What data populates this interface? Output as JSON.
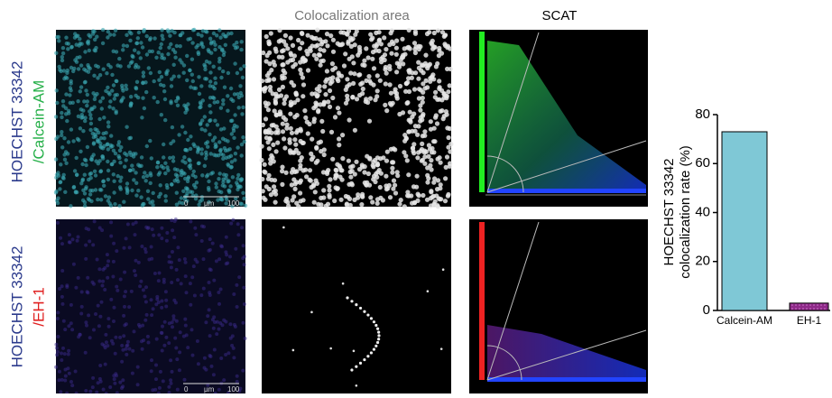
{
  "panels": {
    "col_headers": [
      "Colocalization area",
      "SCAT"
    ],
    "rows": [
      {
        "label": "HOECHST 33342",
        "marker": "/Calcein-AM"
      },
      {
        "label": "HOECHST 33342",
        "marker": "/EH-1"
      }
    ],
    "scale_bar": {
      "start": "0",
      "unit": "µm",
      "end": "100"
    }
  },
  "chart_data": {
    "type": "bar",
    "ylabel": [
      "HOECHST 33342",
      "colocalization rate (%)"
    ],
    "categories": [
      "Calcein-AM",
      "EH-1"
    ],
    "values": [
      73,
      3
    ],
    "colors": [
      "#7fc8d6",
      "#8e2a88"
    ],
    "ylim": [
      0,
      80
    ],
    "yticks": [
      0,
      20,
      40,
      60,
      80
    ]
  }
}
